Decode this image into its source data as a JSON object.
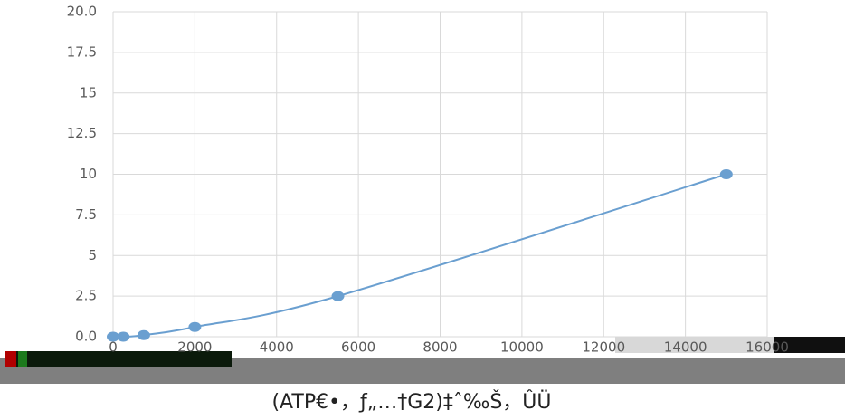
{
  "chart_data": {
    "type": "line",
    "x_label": "(ATP€•，ƒ„…†G2)‡ˆ‰Š，ÛÜ",
    "x": [
      0,
      250,
      750,
      2000,
      5500,
      15000
    ],
    "series": [
      {
        "color": "#6a9fd0",
        "values": [
          0,
          0,
          0.1,
          0.6,
          2.5,
          10
        ]
      }
    ],
    "xlim": [
      0,
      16000
    ],
    "xticks": [
      0,
      2000,
      4000,
      6000,
      8000,
      10000,
      12000,
      14000,
      16000
    ],
    "ylim": [
      0,
      20
    ],
    "yticks": [
      {
        "value": 0,
        "label": "0.0"
      },
      2.5,
      5,
      7.5,
      10,
      12.5,
      15,
      17.5,
      {
        "value": 20,
        "label": "20.0"
      }
    ],
    "grid": true
  }
}
